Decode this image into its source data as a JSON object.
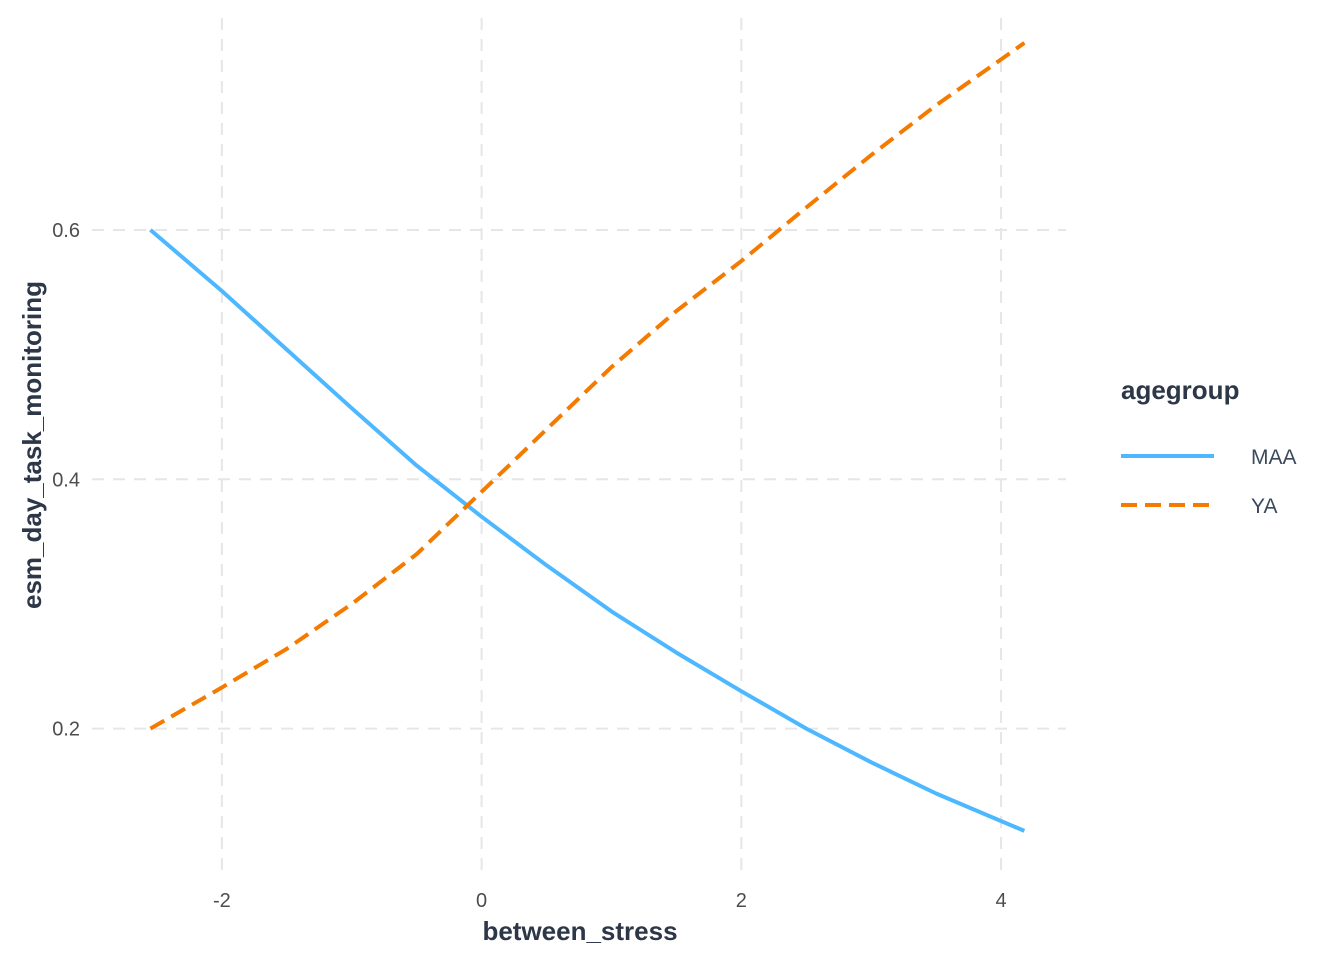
{
  "chart_data": {
    "type": "line",
    "title": "",
    "xlabel": "between_stress",
    "ylabel": "esm_day_task_monitoring",
    "xlim": [
      -3.0,
      4.5
    ],
    "ylim": [
      0.085,
      0.77
    ],
    "xticks": [
      -2,
      0,
      2,
      4
    ],
    "xtick_labels": [
      "-2",
      "0",
      "2",
      "4"
    ],
    "yticks": [
      0.2,
      0.4,
      0.6
    ],
    "ytick_labels": [
      "0.2",
      "0.4",
      "0.6"
    ],
    "grid": true,
    "legend": {
      "title": "agegroup",
      "position": "right"
    },
    "series": [
      {
        "name": "MAA",
        "color": "#4db8ff",
        "dash": "solid",
        "x": [
          -2.55,
          -2,
          -1.5,
          -1,
          -0.5,
          0,
          0.5,
          1,
          1.5,
          2,
          2.5,
          3,
          3.5,
          4.18
        ],
        "y": [
          0.6,
          0.551,
          0.504,
          0.457,
          0.411,
          0.37,
          0.331,
          0.294,
          0.261,
          0.23,
          0.2,
          0.173,
          0.148,
          0.118
        ]
      },
      {
        "name": "YA",
        "color": "#f47a00",
        "dash": "dashed",
        "x": [
          -2.55,
          -2,
          -1.5,
          -1,
          -0.5,
          0,
          0.5,
          1,
          1.5,
          2,
          2.5,
          3,
          3.5,
          4.18
        ],
        "y": [
          0.2,
          0.233,
          0.264,
          0.3,
          0.34,
          0.39,
          0.44,
          0.49,
          0.535,
          0.575,
          0.618,
          0.66,
          0.7,
          0.75
        ]
      }
    ]
  }
}
